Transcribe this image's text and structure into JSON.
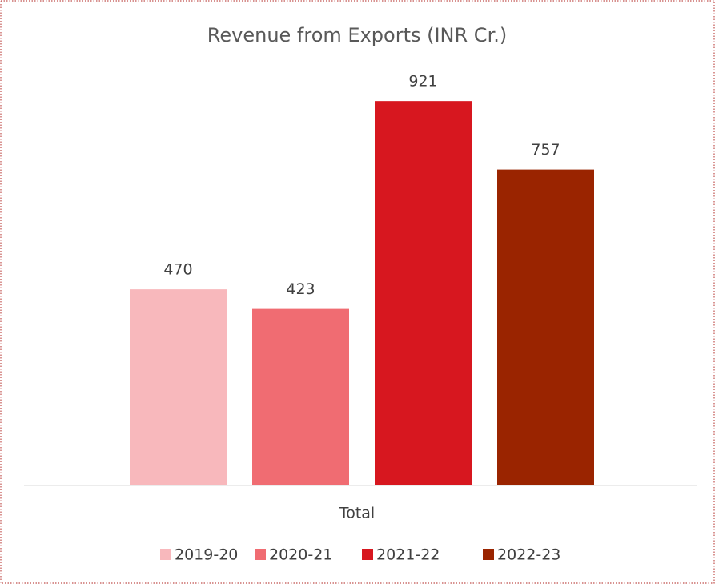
{
  "chart_data": {
    "type": "bar",
    "title": "Revenue from Exports (INR Cr.)",
    "categories": [
      "Total"
    ],
    "series": [
      {
        "name": "2019-20",
        "color": "#f8b8bc",
        "values": [
          470
        ]
      },
      {
        "name": "2020-21",
        "color": "#f06c72",
        "values": [
          423
        ]
      },
      {
        "name": "2021-22",
        "color": "#d7171f",
        "values": [
          921
        ]
      },
      {
        "name": "2022-23",
        "color": "#9a2400",
        "values": [
          757
        ]
      }
    ],
    "ylim": [
      0,
      1000
    ]
  }
}
